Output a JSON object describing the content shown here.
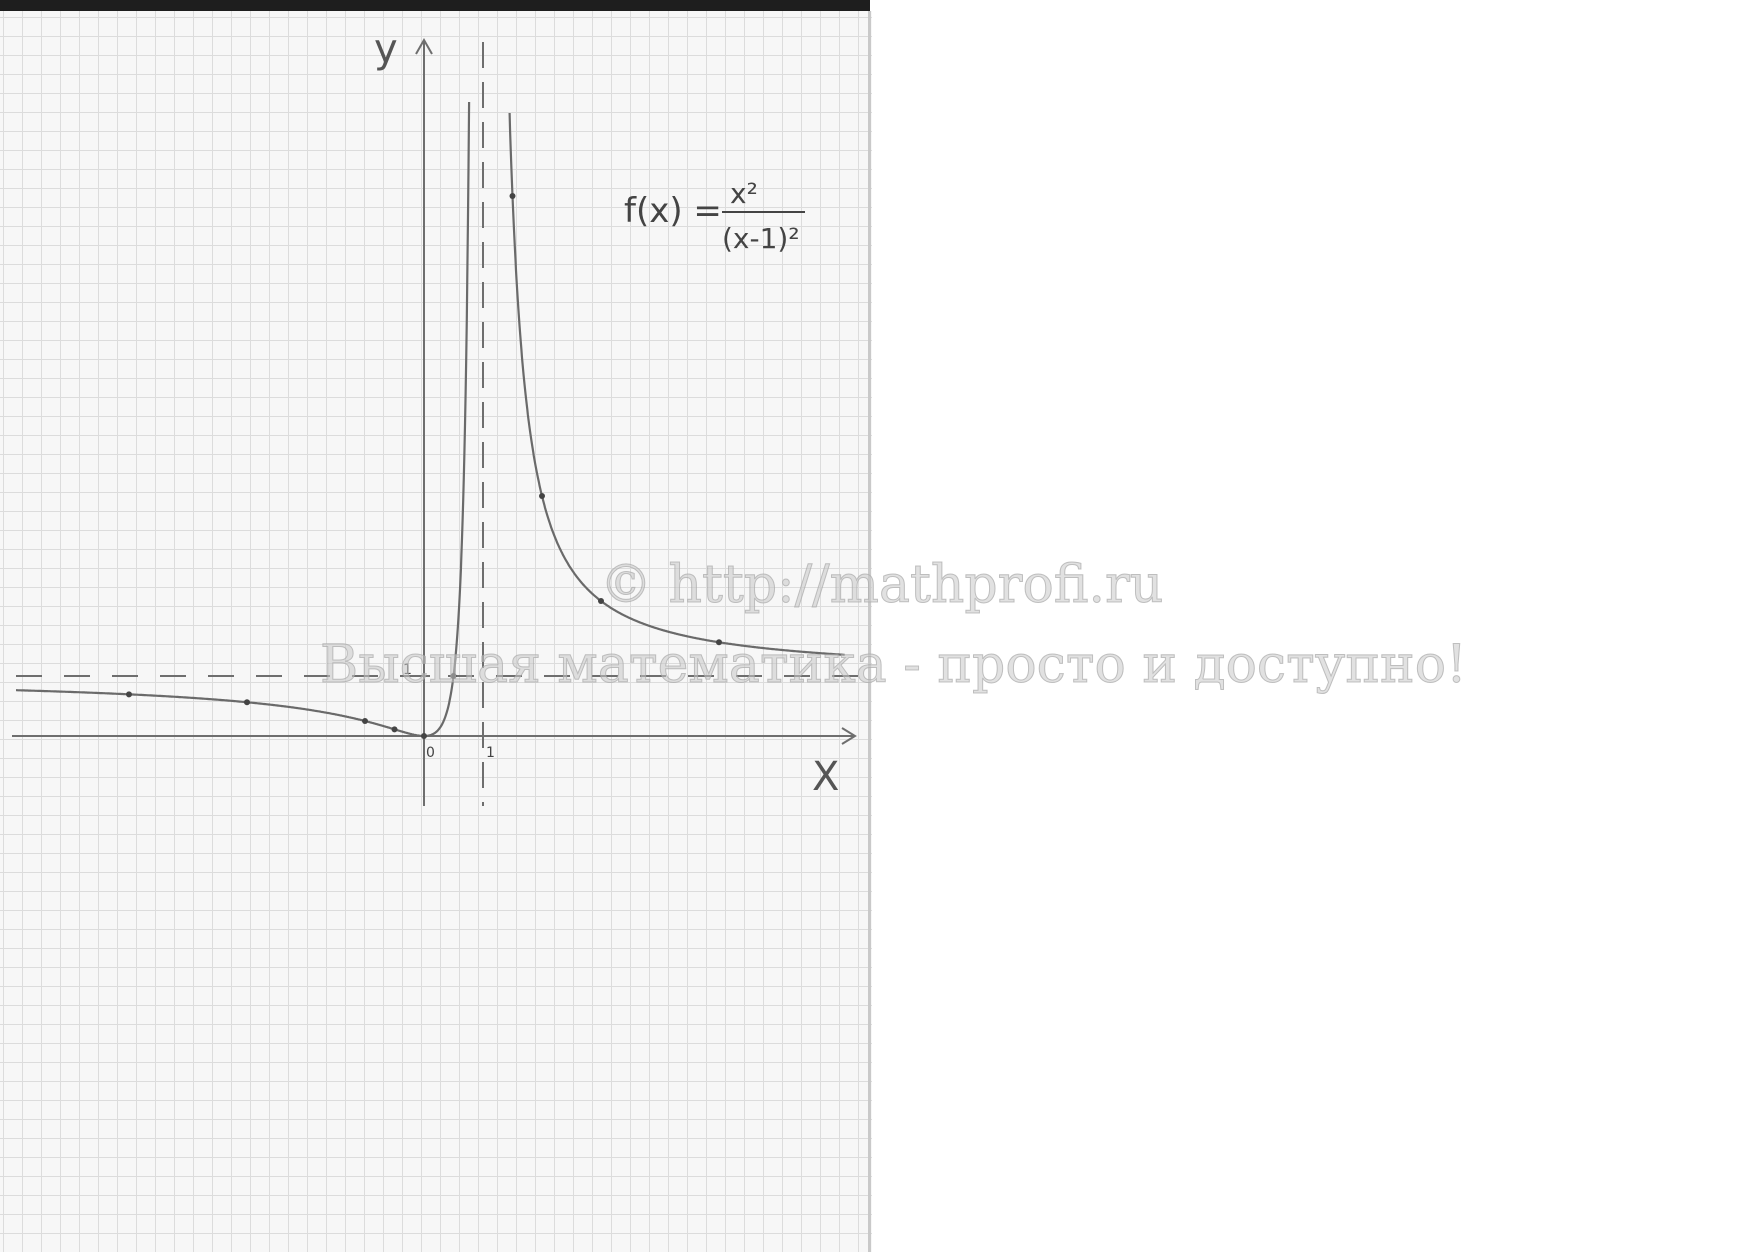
{
  "chart_data": {
    "type": "line",
    "title": "",
    "xlabel": "X",
    "ylabel": "y",
    "x_tick_labels": [
      "0",
      "1"
    ],
    "y_tick_labels": [
      "1"
    ],
    "formula": {
      "lhs": "f(x) =",
      "numerator": "x²",
      "denominator": "(x-1)²"
    },
    "xlim": [
      -7,
      7.3
    ],
    "ylim": [
      -1.2,
      11
    ],
    "grid": true,
    "asymptotes": {
      "vertical": 1,
      "horizontal": 1
    },
    "series": [
      {
        "points": [
          [
            -5,
            0.694
          ],
          [
            -3,
            0.5625
          ],
          [
            -1,
            0.25
          ],
          [
            -0.5,
            0.111
          ],
          [
            0,
            0
          ],
          [
            0.5,
            1
          ],
          [
            1.5,
            9
          ],
          [
            2,
            4
          ],
          [
            3,
            2.25
          ],
          [
            5,
            1.5625
          ]
        ]
      }
    ],
    "color": "#6a6a6a"
  },
  "watermark": {
    "line1": "© http://mathprofi.ru",
    "line2": "Высшая математика - просто и доступно!"
  }
}
